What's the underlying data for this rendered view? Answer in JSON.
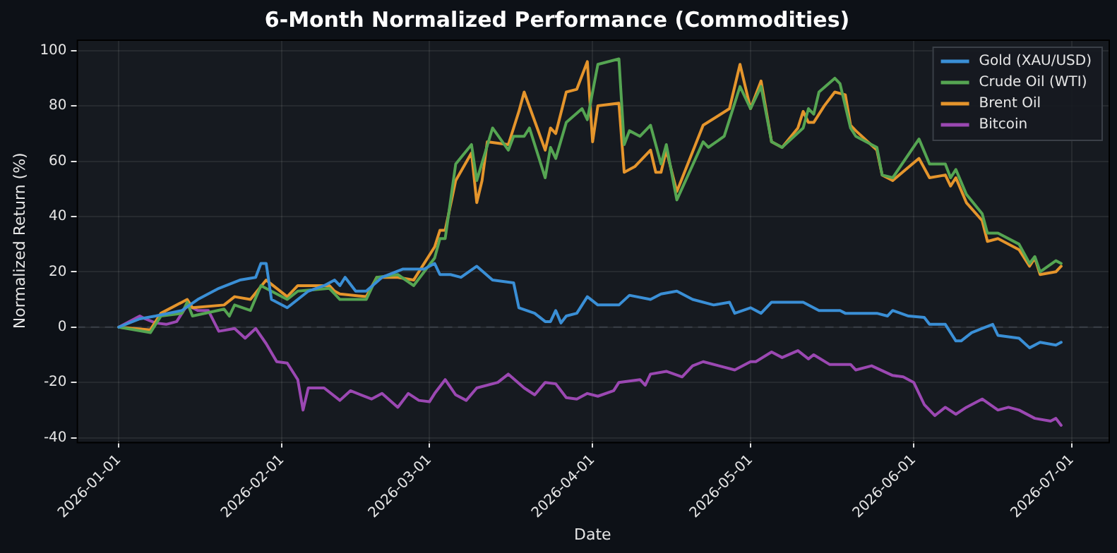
{
  "chart_data": {
    "type": "line",
    "title": "6-Month Normalized Performance (Commodities)",
    "xlabel": "Date",
    "ylabel": "Normalized Return (%)",
    "xlim": [
      "2025-12-24",
      "2026-07-08"
    ],
    "xticks": [
      "2026-01-01",
      "2026-02-01",
      "2026-03-01",
      "2026-04-01",
      "2026-05-01",
      "2026-06-01",
      "2026-07-01"
    ],
    "ylim": [
      -41.5,
      104
    ],
    "yticks": [
      -40,
      -20,
      0,
      20,
      40,
      60,
      80,
      100
    ],
    "grid": true,
    "legend": "top right",
    "marker": "none",
    "line_style": "solid",
    "ref_lines": [
      {
        "axis": "y",
        "value": 0,
        "color": "#3a3f47",
        "line_style": "dashed"
      }
    ],
    "series": [
      {
        "name": "Gold (XAU/USD)",
        "color": "#3a8fd6",
        "x": [
          "2026-01-01",
          "2026-01-05",
          "2026-01-08",
          "2026-01-13",
          "2026-01-16",
          "2026-01-20",
          "2026-01-24",
          "2026-01-27",
          "2026-01-28",
          "2026-01-29",
          "2026-01-30",
          "2026-02-02",
          "2026-02-06",
          "2026-02-09",
          "2026-02-11",
          "2026-02-12",
          "2026-02-13",
          "2026-02-15",
          "2026-02-17",
          "2026-02-20",
          "2026-02-24",
          "2026-02-28",
          "2026-03-02",
          "2026-03-03",
          "2026-03-05",
          "2026-03-07",
          "2026-03-10",
          "2026-03-13",
          "2026-03-17",
          "2026-03-18",
          "2026-03-21",
          "2026-03-23",
          "2026-03-24",
          "2026-03-25",
          "2026-03-26",
          "2026-03-27",
          "2026-03-29",
          "2026-03-31",
          "2026-04-02",
          "2026-04-06",
          "2026-04-08",
          "2026-04-12",
          "2026-04-14",
          "2026-04-17",
          "2026-04-20",
          "2026-04-24",
          "2026-04-27",
          "2026-04-28",
          "2026-05-01",
          "2026-05-03",
          "2026-05-05",
          "2026-05-11",
          "2026-05-14",
          "2026-05-18",
          "2026-05-19",
          "2026-05-25",
          "2026-05-27",
          "2026-05-28",
          "2026-05-31",
          "2026-06-03",
          "2026-06-04",
          "2026-06-07",
          "2026-06-09",
          "2026-06-10",
          "2026-06-12",
          "2026-06-14",
          "2026-06-16",
          "2026-06-17",
          "2026-06-21",
          "2026-06-23",
          "2026-06-25",
          "2026-06-28",
          "2026-06-29"
        ],
        "values": [
          0,
          3,
          4,
          6,
          10,
          14,
          17,
          18,
          23,
          23,
          10,
          7,
          13,
          15,
          17,
          15,
          18,
          13,
          13,
          18,
          21,
          21,
          23,
          19,
          19,
          18,
          22,
          17,
          16,
          7,
          5,
          2,
          2,
          6,
          1.5,
          4,
          5,
          11,
          8,
          8,
          11.5,
          10,
          12,
          13,
          10,
          8,
          9,
          5,
          7,
          5,
          9,
          9,
          6,
          6,
          5,
          5,
          4,
          6,
          4,
          3.5,
          1,
          1,
          -5,
          -5,
          -2,
          -0.5,
          1,
          -3,
          -4,
          -7.5,
          -5.5,
          -6.5,
          -5.5
        ]
      },
      {
        "name": "Crude Oil (WTI)",
        "color": "#55a552",
        "x": [
          "2026-01-01",
          "2026-01-07",
          "2026-01-09",
          "2026-01-13",
          "2026-01-14",
          "2026-01-15",
          "2026-01-21",
          "2026-01-22",
          "2026-01-23",
          "2026-01-26",
          "2026-01-28",
          "2026-02-02",
          "2026-02-04",
          "2026-02-10",
          "2026-02-11",
          "2026-02-12",
          "2026-02-17",
          "2026-02-19",
          "2026-02-23",
          "2026-02-26",
          "2026-03-02",
          "2026-03-03",
          "2026-03-04",
          "2026-03-06",
          "2026-03-09",
          "2026-03-10",
          "2026-03-13",
          "2026-03-16",
          "2026-03-17",
          "2026-03-19",
          "2026-03-20",
          "2026-03-23",
          "2026-03-24",
          "2026-03-25",
          "2026-03-27",
          "2026-03-30",
          "2026-03-31",
          "2026-04-02",
          "2026-04-06",
          "2026-04-07",
          "2026-04-08",
          "2026-04-10",
          "2026-04-12",
          "2026-04-14",
          "2026-04-15",
          "2026-04-17",
          "2026-04-22",
          "2026-04-23",
          "2026-04-26",
          "2026-04-27",
          "2026-04-29",
          "2026-05-01",
          "2026-05-03",
          "2026-05-05",
          "2026-05-07",
          "2026-05-11",
          "2026-05-12",
          "2026-05-13",
          "2026-05-14",
          "2026-05-17",
          "2026-05-18",
          "2026-05-20",
          "2026-05-21",
          "2026-05-25",
          "2026-05-26",
          "2026-05-28",
          "2026-06-02",
          "2026-06-04",
          "2026-06-07",
          "2026-06-08",
          "2026-06-09",
          "2026-06-11",
          "2026-06-14",
          "2026-06-15",
          "2026-06-17",
          "2026-06-21",
          "2026-06-23",
          "2026-06-24",
          "2026-06-25",
          "2026-06-28",
          "2026-06-29"
        ],
        "values": [
          0,
          -2,
          4,
          5,
          9,
          4,
          6.5,
          4,
          8,
          6,
          15,
          10,
          13,
          14,
          12,
          10,
          10,
          18,
          19,
          15,
          25,
          32,
          32,
          59,
          66,
          53,
          72,
          64,
          69,
          69,
          72,
          54,
          65,
          61,
          74,
          79,
          75,
          95,
          97,
          66,
          71,
          69,
          73,
          59,
          66,
          46,
          67,
          65,
          69,
          75,
          87,
          79,
          87,
          67,
          65,
          72,
          79,
          77,
          85,
          90,
          88,
          72,
          69,
          65,
          55,
          54,
          68,
          59,
          59,
          54,
          57,
          48,
          41,
          34,
          34,
          30,
          23,
          25.5,
          20,
          24,
          23
        ]
      },
      {
        "name": "Brent Oil",
        "color": "#e5952c",
        "x": [
          "2026-01-01",
          "2026-01-07",
          "2026-01-09",
          "2026-01-14",
          "2026-01-15",
          "2026-01-21",
          "2026-01-23",
          "2026-01-26",
          "2026-01-29",
          "2026-02-02",
          "2026-02-04",
          "2026-02-10",
          "2026-02-11",
          "2026-02-12",
          "2026-02-17",
          "2026-02-19",
          "2026-02-23",
          "2026-02-26",
          "2026-03-02",
          "2026-03-03",
          "2026-03-04",
          "2026-03-06",
          "2026-03-09",
          "2026-03-10",
          "2026-03-11",
          "2026-03-12",
          "2026-03-16",
          "2026-03-18",
          "2026-03-19",
          "2026-03-23",
          "2026-03-24",
          "2026-03-25",
          "2026-03-27",
          "2026-03-29",
          "2026-03-31",
          "2026-04-01",
          "2026-04-02",
          "2026-04-06",
          "2026-04-07",
          "2026-04-09",
          "2026-04-12",
          "2026-04-13",
          "2026-04-14",
          "2026-04-15",
          "2026-04-17",
          "2026-04-22",
          "2026-04-27",
          "2026-04-29",
          "2026-05-01",
          "2026-05-03",
          "2026-05-05",
          "2026-05-07",
          "2026-05-10",
          "2026-05-11",
          "2026-05-12",
          "2026-05-13",
          "2026-05-15",
          "2026-05-17",
          "2026-05-19",
          "2026-05-20",
          "2026-05-21",
          "2026-05-25",
          "2026-05-26",
          "2026-05-28",
          "2026-06-02",
          "2026-06-04",
          "2026-06-07",
          "2026-06-08",
          "2026-06-09",
          "2026-06-11",
          "2026-06-14",
          "2026-06-15",
          "2026-06-17",
          "2026-06-21",
          "2026-06-23",
          "2026-06-24",
          "2026-06-25",
          "2026-06-28",
          "2026-06-29"
        ],
        "values": [
          0,
          -1,
          5,
          10,
          7,
          8,
          11,
          10,
          17,
          11,
          15,
          15,
          13,
          12,
          11,
          18,
          18,
          17,
          29,
          35,
          35,
          53,
          63,
          45,
          53,
          67,
          66,
          78,
          85,
          64,
          72,
          70,
          85,
          86,
          96,
          67,
          80,
          81,
          56,
          58,
          64,
          56,
          56,
          64,
          49,
          73,
          79,
          95,
          79,
          89,
          67,
          65,
          72,
          78,
          74,
          74,
          80,
          85,
          84,
          73,
          71,
          64,
          55,
          53,
          61,
          54,
          55,
          51,
          54,
          45,
          38.5,
          31,
          32,
          28,
          22,
          25,
          19,
          20,
          22
        ]
      },
      {
        "name": "Bitcoin",
        "color": "#9b48b2",
        "x": [
          "2026-01-01",
          "2026-01-05",
          "2026-01-06",
          "2026-01-08",
          "2026-01-10",
          "2026-01-12",
          "2026-01-14",
          "2026-01-16",
          "2026-01-18",
          "2026-01-20",
          "2026-01-23",
          "2026-01-25",
          "2026-01-27",
          "2026-01-29",
          "2026-01-31",
          "2026-02-02",
          "2026-02-04",
          "2026-02-05",
          "2026-02-06",
          "2026-02-09",
          "2026-02-12",
          "2026-02-14",
          "2026-02-18",
          "2026-02-20",
          "2026-02-23",
          "2026-02-25",
          "2026-02-27",
          "2026-03-01",
          "2026-03-02",
          "2026-03-04",
          "2026-03-06",
          "2026-03-08",
          "2026-03-10",
          "2026-03-14",
          "2026-03-16",
          "2026-03-19",
          "2026-03-21",
          "2026-03-23",
          "2026-03-25",
          "2026-03-27",
          "2026-03-29",
          "2026-03-31",
          "2026-04-02",
          "2026-04-05",
          "2026-04-06",
          "2026-04-10",
          "2026-04-11",
          "2026-04-12",
          "2026-04-15",
          "2026-04-18",
          "2026-04-20",
          "2026-04-22",
          "2026-04-25",
          "2026-04-28",
          "2026-05-01",
          "2026-05-02",
          "2026-05-05",
          "2026-05-07",
          "2026-05-10",
          "2026-05-12",
          "2026-05-13",
          "2026-05-16",
          "2026-05-20",
          "2026-05-21",
          "2026-05-24",
          "2026-05-28",
          "2026-05-30",
          "2026-06-01",
          "2026-06-03",
          "2026-06-05",
          "2026-06-07",
          "2026-06-09",
          "2026-06-11",
          "2026-06-14",
          "2026-06-17",
          "2026-06-19",
          "2026-06-21",
          "2026-06-24",
          "2026-06-27",
          "2026-06-28",
          "2026-06-29"
        ],
        "values": [
          0,
          4,
          3,
          1.5,
          1,
          2,
          8,
          6,
          6,
          -1.5,
          -0.5,
          -4,
          -0.5,
          -6,
          -12.5,
          -13,
          -19,
          -30,
          -22,
          -22,
          -26.5,
          -23,
          -26,
          -24,
          -29,
          -24,
          -26.5,
          -27,
          -24,
          -19,
          -24.5,
          -26.5,
          -22,
          -20,
          -17,
          -22,
          -24.5,
          -20,
          -20.5,
          -25.5,
          -26,
          -24,
          -25,
          -23,
          -20,
          -19,
          -21,
          -17,
          -16,
          -18,
          -14,
          -12.5,
          -14,
          -15.5,
          -12.5,
          -12.5,
          -9,
          -11,
          -8.5,
          -11.5,
          -10,
          -13.5,
          -13.5,
          -15.5,
          -14,
          -17.5,
          -18,
          -20,
          -28,
          -32,
          -29,
          -31.5,
          -29,
          -26,
          -30,
          -29,
          -30,
          -33,
          -34,
          -33,
          -35.5
        ]
      }
    ]
  }
}
